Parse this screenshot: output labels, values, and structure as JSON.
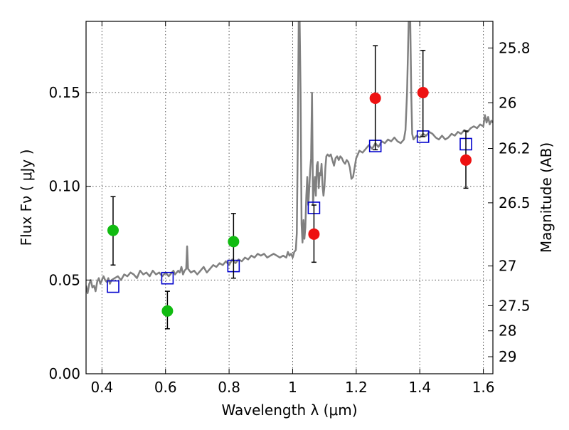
{
  "chart_data": {
    "type": "scatter",
    "xlabel": "Wavelength  λ (μm)",
    "ylabel": "Flux  Fν  ( μJy )",
    "y2label": "Magnitude (AB)",
    "xlim": [
      0.35,
      1.63
    ],
    "ylim": [
      0.0,
      0.188
    ],
    "xticks": [
      0.4,
      0.6,
      0.8,
      1.0,
      1.2,
      1.4,
      1.6
    ],
    "xtick_labels": [
      "0.4",
      "0.6",
      "0.8",
      "1",
      "1.2",
      "1.4",
      "1.6"
    ],
    "yticks": [
      0.0,
      0.05,
      0.1,
      0.15
    ],
    "ytick_labels": [
      "0.00",
      "0.05",
      "0.10",
      "0.15"
    ],
    "y2ticks": [
      {
        "label": "25.8",
        "flux": 0.1738
      },
      {
        "label": "26",
        "flux": 0.1445
      },
      {
        "label": "26.2",
        "flux": 0.1202
      },
      {
        "label": "26.5",
        "flux": 0.0912
      },
      {
        "label": "27",
        "flux": 0.0575
      },
      {
        "label": "27.5",
        "flux": 0.0363
      },
      {
        "label": "28",
        "flux": 0.0229
      },
      {
        "label": "29",
        "flux": 0.0091
      }
    ],
    "grid": true,
    "colors": {
      "green": "#11bb11",
      "red": "#ee1111",
      "model_box": "#0000cc",
      "spectrum": "#808080"
    },
    "series": [
      {
        "points": [
          {
            "x": 0.435,
            "y": 0.0765,
            "err_lo": 0.0185,
            "err_hi": 0.018
          },
          {
            "x": 0.606,
            "y": 0.0335,
            "err_lo": 0.0095,
            "err_hi": 0.0105
          },
          {
            "x": 0.814,
            "y": 0.0705,
            "err_lo": 0.0195,
            "err_hi": 0.015
          }
        ]
      },
      {
        "points": [
          {
            "x": 1.067,
            "y": 0.0745,
            "err_lo": 0.015,
            "err_hi": 0.0155
          },
          {
            "x": 1.26,
            "y": 0.147,
            "err_lo": 0.0275,
            "err_hi": 0.028
          },
          {
            "x": 1.41,
            "y": 0.15,
            "err_lo": 0.0235,
            "err_hi": 0.0225
          },
          {
            "x": 1.545,
            "y": 0.114,
            "err_lo": 0.015,
            "err_hi": 0.0155
          }
        ]
      },
      {
        "points": [
          {
            "x": 0.435,
            "y": 0.0465
          },
          {
            "x": 0.606,
            "y": 0.051
          },
          {
            "x": 0.814,
            "y": 0.0575
          },
          {
            "x": 1.067,
            "y": 0.0885
          },
          {
            "x": 1.26,
            "y": 0.1215
          },
          {
            "x": 1.41,
            "y": 0.1265
          },
          {
            "x": 1.545,
            "y": 0.1225
          }
        ]
      },
      {
        "points": [
          [
            0.35,
            0.047
          ],
          [
            0.355,
            0.043
          ],
          [
            0.36,
            0.048
          ],
          [
            0.365,
            0.05
          ],
          [
            0.37,
            0.046
          ],
          [
            0.375,
            0.047
          ],
          [
            0.38,
            0.044
          ],
          [
            0.385,
            0.049
          ],
          [
            0.39,
            0.051
          ],
          [
            0.395,
            0.048
          ],
          [
            0.4,
            0.05
          ],
          [
            0.405,
            0.052
          ],
          [
            0.41,
            0.05
          ],
          [
            0.415,
            0.049
          ],
          [
            0.42,
            0.051
          ],
          [
            0.425,
            0.048
          ],
          [
            0.43,
            0.05
          ],
          [
            0.44,
            0.051
          ],
          [
            0.45,
            0.052
          ],
          [
            0.46,
            0.05
          ],
          [
            0.47,
            0.053
          ],
          [
            0.48,
            0.052
          ],
          [
            0.49,
            0.054
          ],
          [
            0.5,
            0.053
          ],
          [
            0.51,
            0.051
          ],
          [
            0.52,
            0.055
          ],
          [
            0.53,
            0.053
          ],
          [
            0.54,
            0.054
          ],
          [
            0.55,
            0.052
          ],
          [
            0.56,
            0.055
          ],
          [
            0.57,
            0.053
          ],
          [
            0.58,
            0.054
          ],
          [
            0.59,
            0.052
          ],
          [
            0.6,
            0.054
          ],
          [
            0.61,
            0.052
          ],
          [
            0.62,
            0.054
          ],
          [
            0.625,
            0.055
          ],
          [
            0.63,
            0.053
          ],
          [
            0.64,
            0.055
          ],
          [
            0.645,
            0.054
          ],
          [
            0.65,
            0.057
          ],
          [
            0.655,
            0.053
          ],
          [
            0.66,
            0.055
          ],
          [
            0.665,
            0.056
          ],
          [
            0.668,
            0.068
          ],
          [
            0.671,
            0.056
          ],
          [
            0.68,
            0.054
          ],
          [
            0.69,
            0.055
          ],
          [
            0.7,
            0.053
          ],
          [
            0.71,
            0.055
          ],
          [
            0.72,
            0.057
          ],
          [
            0.73,
            0.054
          ],
          [
            0.74,
            0.056
          ],
          [
            0.75,
            0.058
          ],
          [
            0.76,
            0.057
          ],
          [
            0.77,
            0.059
          ],
          [
            0.78,
            0.058
          ],
          [
            0.79,
            0.06
          ],
          [
            0.8,
            0.058
          ],
          [
            0.81,
            0.061
          ],
          [
            0.82,
            0.059
          ],
          [
            0.83,
            0.061
          ],
          [
            0.84,
            0.06
          ],
          [
            0.85,
            0.062
          ],
          [
            0.86,
            0.061
          ],
          [
            0.87,
            0.063
          ],
          [
            0.88,
            0.062
          ],
          [
            0.89,
            0.064
          ],
          [
            0.9,
            0.063
          ],
          [
            0.91,
            0.064
          ],
          [
            0.92,
            0.062
          ],
          [
            0.93,
            0.063
          ],
          [
            0.94,
            0.064
          ],
          [
            0.95,
            0.063
          ],
          [
            0.96,
            0.062
          ],
          [
            0.97,
            0.063
          ],
          [
            0.98,
            0.062
          ],
          [
            0.985,
            0.065
          ],
          [
            0.99,
            0.063
          ],
          [
            0.995,
            0.064
          ],
          [
            1.0,
            0.062
          ],
          [
            1.005,
            0.065
          ],
          [
            1.01,
            0.066
          ],
          [
            1.013,
            0.075
          ],
          [
            1.016,
            0.12
          ],
          [
            1.019,
            0.188
          ],
          [
            1.022,
            0.188
          ],
          [
            1.025,
            0.15
          ],
          [
            1.028,
            0.08
          ],
          [
            1.031,
            0.07
          ],
          [
            1.034,
            0.082
          ],
          [
            1.037,
            0.072
          ],
          [
            1.04,
            0.078
          ],
          [
            1.043,
            0.095
          ],
          [
            1.046,
            0.105
          ],
          [
            1.049,
            0.09
          ],
          [
            1.052,
            0.098
          ],
          [
            1.055,
            0.108
          ],
          [
            1.058,
            0.115
          ],
          [
            1.061,
            0.15
          ],
          [
            1.064,
            0.09
          ],
          [
            1.067,
            0.099
          ],
          [
            1.07,
            0.105
          ],
          [
            1.073,
            0.095
          ],
          [
            1.076,
            0.111
          ],
          [
            1.079,
            0.113
          ],
          [
            1.082,
            0.099
          ],
          [
            1.085,
            0.107
          ],
          [
            1.088,
            0.106
          ],
          [
            1.091,
            0.112
          ],
          [
            1.094,
            0.1
          ],
          [
            1.097,
            0.095
          ],
          [
            1.1,
            0.1
          ],
          [
            1.103,
            0.11
          ],
          [
            1.106,
            0.116
          ],
          [
            1.11,
            0.117
          ],
          [
            1.115,
            0.116
          ],
          [
            1.12,
            0.117
          ],
          [
            1.125,
            0.114
          ],
          [
            1.13,
            0.111
          ],
          [
            1.135,
            0.115
          ],
          [
            1.14,
            0.116
          ],
          [
            1.145,
            0.114
          ],
          [
            1.15,
            0.116
          ],
          [
            1.155,
            0.115
          ],
          [
            1.16,
            0.113
          ],
          [
            1.165,
            0.112
          ],
          [
            1.17,
            0.114
          ],
          [
            1.175,
            0.113
          ],
          [
            1.18,
            0.11
          ],
          [
            1.185,
            0.104
          ],
          [
            1.19,
            0.105
          ],
          [
            1.195,
            0.11
          ],
          [
            1.2,
            0.115
          ],
          [
            1.21,
            0.119
          ],
          [
            1.22,
            0.118
          ],
          [
            1.23,
            0.12
          ],
          [
            1.24,
            0.122
          ],
          [
            1.25,
            0.12
          ],
          [
            1.26,
            0.123
          ],
          [
            1.27,
            0.121
          ],
          [
            1.28,
            0.124
          ],
          [
            1.29,
            0.123
          ],
          [
            1.3,
            0.125
          ],
          [
            1.31,
            0.124
          ],
          [
            1.32,
            0.126
          ],
          [
            1.33,
            0.124
          ],
          [
            1.34,
            0.123
          ],
          [
            1.35,
            0.125
          ],
          [
            1.355,
            0.13
          ],
          [
            1.36,
            0.15
          ],
          [
            1.365,
            0.188
          ],
          [
            1.37,
            0.188
          ],
          [
            1.373,
            0.15
          ],
          [
            1.376,
            0.128
          ],
          [
            1.38,
            0.125
          ],
          [
            1.39,
            0.127
          ],
          [
            1.4,
            0.126
          ],
          [
            1.41,
            0.128
          ],
          [
            1.42,
            0.127
          ],
          [
            1.43,
            0.129
          ],
          [
            1.44,
            0.128
          ],
          [
            1.45,
            0.126
          ],
          [
            1.46,
            0.125
          ],
          [
            1.47,
            0.127
          ],
          [
            1.48,
            0.125
          ],
          [
            1.49,
            0.126
          ],
          [
            1.5,
            0.128
          ],
          [
            1.51,
            0.127
          ],
          [
            1.52,
            0.129
          ],
          [
            1.53,
            0.128
          ],
          [
            1.54,
            0.13
          ],
          [
            1.55,
            0.129
          ],
          [
            1.56,
            0.131
          ],
          [
            1.57,
            0.132
          ],
          [
            1.58,
            0.131
          ],
          [
            1.59,
            0.133
          ],
          [
            1.6,
            0.132
          ],
          [
            1.605,
            0.138
          ],
          [
            1.61,
            0.134
          ],
          [
            1.615,
            0.137
          ],
          [
            1.62,
            0.133
          ],
          [
            1.625,
            0.135
          ],
          [
            1.63,
            0.134
          ]
        ]
      }
    ]
  }
}
